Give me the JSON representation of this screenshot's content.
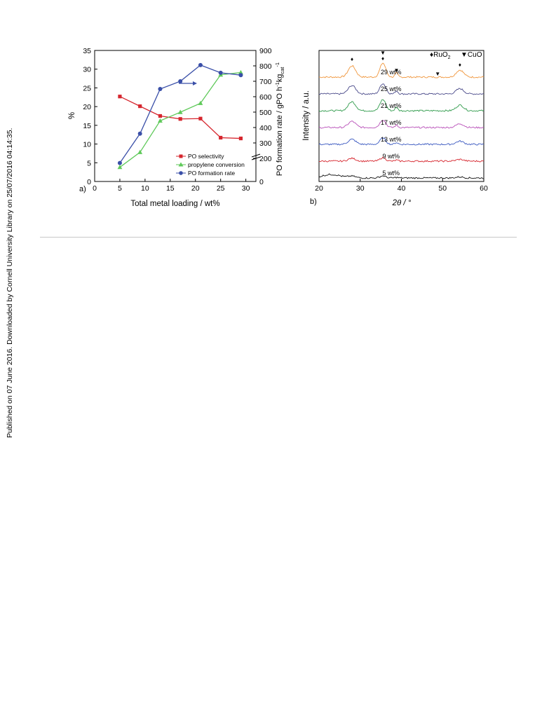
{
  "side_note": "Published on 07 June 2016. Downloaded by Cornell University Library on 25/07/2016 04:14:35.",
  "chart_data": [
    {
      "type": "line",
      "panel_label": "a)",
      "xlabel": "Total metal loading / wt%",
      "ylabel_left": "%",
      "ylabel_right": "PO formation rate / gPO h",
      "ylabel_right_sup1": "-1",
      "ylabel_right_mid": "kg",
      "ylabel_right_sub": "cat",
      "ylabel_right_sup2": "-1",
      "xlim": [
        0,
        32
      ],
      "xticks": [
        0,
        5,
        10,
        15,
        20,
        25,
        30
      ],
      "ylim_left": [
        0,
        35
      ],
      "yticks_left": [
        0,
        5,
        10,
        15,
        20,
        25,
        30,
        35
      ],
      "ylim_right": [
        0,
        900
      ],
      "yticks_right": [
        0,
        200,
        300,
        400,
        500,
        600,
        700,
        800,
        900
      ],
      "right_axis_break": true,
      "series": [
        {
          "name": "PO selectivity",
          "axis": "left",
          "color": "#d6262e",
          "marker": "square",
          "x": [
            5,
            9,
            13,
            17,
            21,
            25,
            29
          ],
          "y": [
            22.7,
            20.1,
            17.5,
            16.7,
            16.8,
            11.7,
            11.5
          ]
        },
        {
          "name": "propylene conversion",
          "axis": "left",
          "color": "#5fc95a",
          "marker": "triangle",
          "x": [
            5,
            9,
            13,
            17,
            21,
            25,
            29
          ],
          "y": [
            3.8,
            7.8,
            16.2,
            18.5,
            20.9,
            28.5,
            29.1
          ]
        },
        {
          "name": "PO formation rate",
          "axis": "right",
          "color": "#3a4fa8",
          "marker": "circle",
          "x": [
            5,
            9,
            13,
            17,
            21,
            25,
            29
          ],
          "y": [
            160,
            360,
            650,
            700,
            805,
            755,
            740
          ]
        }
      ],
      "legend_position": "bottom-right"
    },
    {
      "type": "line",
      "panel_label": "b)",
      "xlabel": "2θ / °",
      "ylabel": "Intensity / a.u.",
      "xlim": [
        20,
        60
      ],
      "xticks": [
        20,
        30,
        40,
        50,
        60
      ],
      "legend": [
        {
          "symbol": "♦",
          "label": "RuO",
          "sub": "2"
        },
        {
          "symbol": "▼",
          "label": "CuO",
          "sub": ""
        }
      ],
      "markers": [
        {
          "symbol": "♦",
          "x": 28.0
        },
        {
          "symbol": "▼",
          "x": 35.5
        },
        {
          "symbol": "♦",
          "x": 35.5
        },
        {
          "symbol": "▼",
          "x": 38.8
        },
        {
          "symbol": "▼",
          "x": 48.8
        },
        {
          "symbol": "♦",
          "x": 54.2
        }
      ],
      "series": [
        {
          "name": "29 wt%",
          "color": "#f0963c",
          "peak_scale": 1.0
        },
        {
          "name": "25 wt%",
          "color": "#4a4a8a",
          "peak_scale": 0.75
        },
        {
          "name": "21 wt%",
          "color": "#2e9a4a",
          "peak_scale": 0.8
        },
        {
          "name": "17 wt%",
          "color": "#b84fb8",
          "peak_scale": 0.55
        },
        {
          "name": "13 wt%",
          "color": "#3a58c0",
          "peak_scale": 0.45
        },
        {
          "name": "9 wt%",
          "color": "#d6262e",
          "peak_scale": 0.25
        },
        {
          "name": "5 wt%",
          "color": "#111111",
          "peak_scale": 0.15
        }
      ]
    }
  ]
}
